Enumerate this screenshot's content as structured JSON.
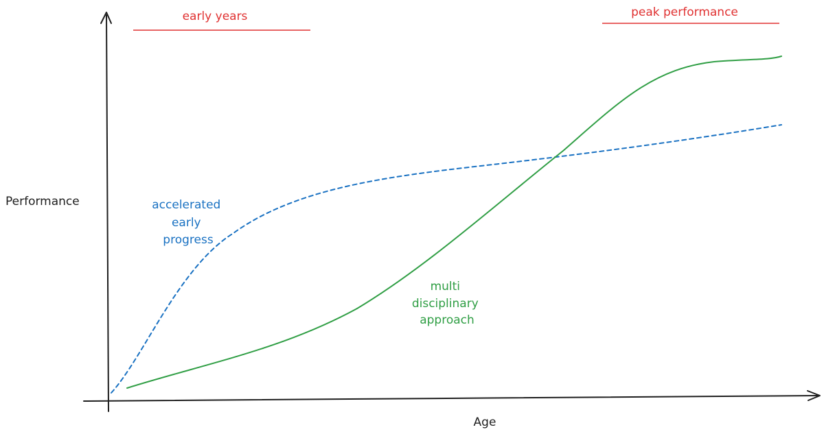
{
  "colors": {
    "axis": "#1e1e1e",
    "red": "#e03131",
    "blue": "#1971c2",
    "green": "#2f9e44"
  },
  "axes": {
    "x_label": "Age",
    "y_label": "Performance"
  },
  "phases": {
    "early": "early years",
    "peak": "peak performance"
  },
  "curves": {
    "specialist": {
      "style": "dashed",
      "label_lines": [
        "accelerated",
        "early",
        "progress"
      ]
    },
    "multidisciplinary": {
      "style": "solid",
      "label_lines": [
        "multi",
        "disciplinary",
        "approach"
      ]
    }
  }
}
